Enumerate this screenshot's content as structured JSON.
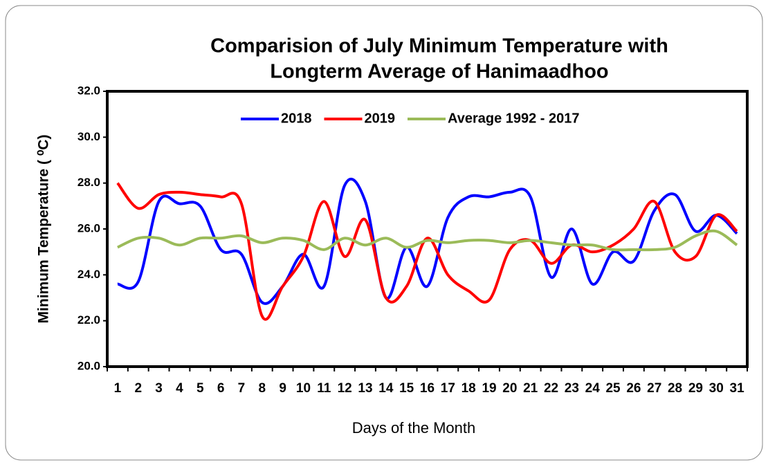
{
  "chart_data": {
    "type": "line",
    "title": [
      "Comparision of July Minimum Temperature with",
      "Longterm Average of Hanimaadhoo"
    ],
    "x_label": "Days of the Month",
    "y_label": "Minimum Temperature ( ⁰C)",
    "categories": [
      "1",
      "2",
      "3",
      "4",
      "5",
      "6",
      "7",
      "8",
      "9",
      "10",
      "11",
      "12",
      "13",
      "14",
      "15",
      "16",
      "17",
      "18",
      "19",
      "20",
      "21",
      "22",
      "23",
      "24",
      "25",
      "26",
      "27",
      "28",
      "29",
      "30",
      "31"
    ],
    "series": [
      {
        "name": "2018",
        "color": "#0000ff",
        "values": [
          23.6,
          23.7,
          27.2,
          27.1,
          27.0,
          25.1,
          24.9,
          22.8,
          23.5,
          24.9,
          23.5,
          27.9,
          27.2,
          23.0,
          25.2,
          23.5,
          26.5,
          27.4,
          27.4,
          27.6,
          27.4,
          23.9,
          26.0,
          23.6,
          25.0,
          24.6,
          26.8,
          27.5,
          25.9,
          26.6,
          25.8
        ]
      },
      {
        "name": "2019",
        "color": "#ff0000",
        "values": [
          28.0,
          26.9,
          27.5,
          27.6,
          27.5,
          27.4,
          27.1,
          22.2,
          23.5,
          24.8,
          27.2,
          24.8,
          26.4,
          23.0,
          23.5,
          25.6,
          24.0,
          23.3,
          22.9,
          25.1,
          25.5,
          24.5,
          25.3,
          25.0,
          25.3,
          26.0,
          27.2,
          25.0,
          24.8,
          26.6,
          25.9
        ]
      },
      {
        "name": "Average 1992 - 2017",
        "color": "#9bbb59",
        "values": [
          25.2,
          25.6,
          25.6,
          25.3,
          25.6,
          25.6,
          25.7,
          25.4,
          25.6,
          25.5,
          25.1,
          25.6,
          25.3,
          25.6,
          25.2,
          25.5,
          25.4,
          25.5,
          25.5,
          25.4,
          25.5,
          25.4,
          25.3,
          25.3,
          25.1,
          25.1,
          25.1,
          25.2,
          25.7,
          25.9,
          25.3
        ]
      }
    ],
    "ylim": [
      20,
      32
    ],
    "yticks": [
      {
        "value": 20,
        "label": "20.0"
      },
      {
        "value": 22,
        "label": "22.0"
      },
      {
        "value": 24,
        "label": "24.0"
      },
      {
        "value": 26,
        "label": "26.0"
      },
      {
        "value": 28,
        "label": "28.0"
      },
      {
        "value": 30,
        "label": "30.0"
      },
      {
        "value": 32,
        "label": "32.0"
      }
    ],
    "smooth": true,
    "legend": "top"
  }
}
